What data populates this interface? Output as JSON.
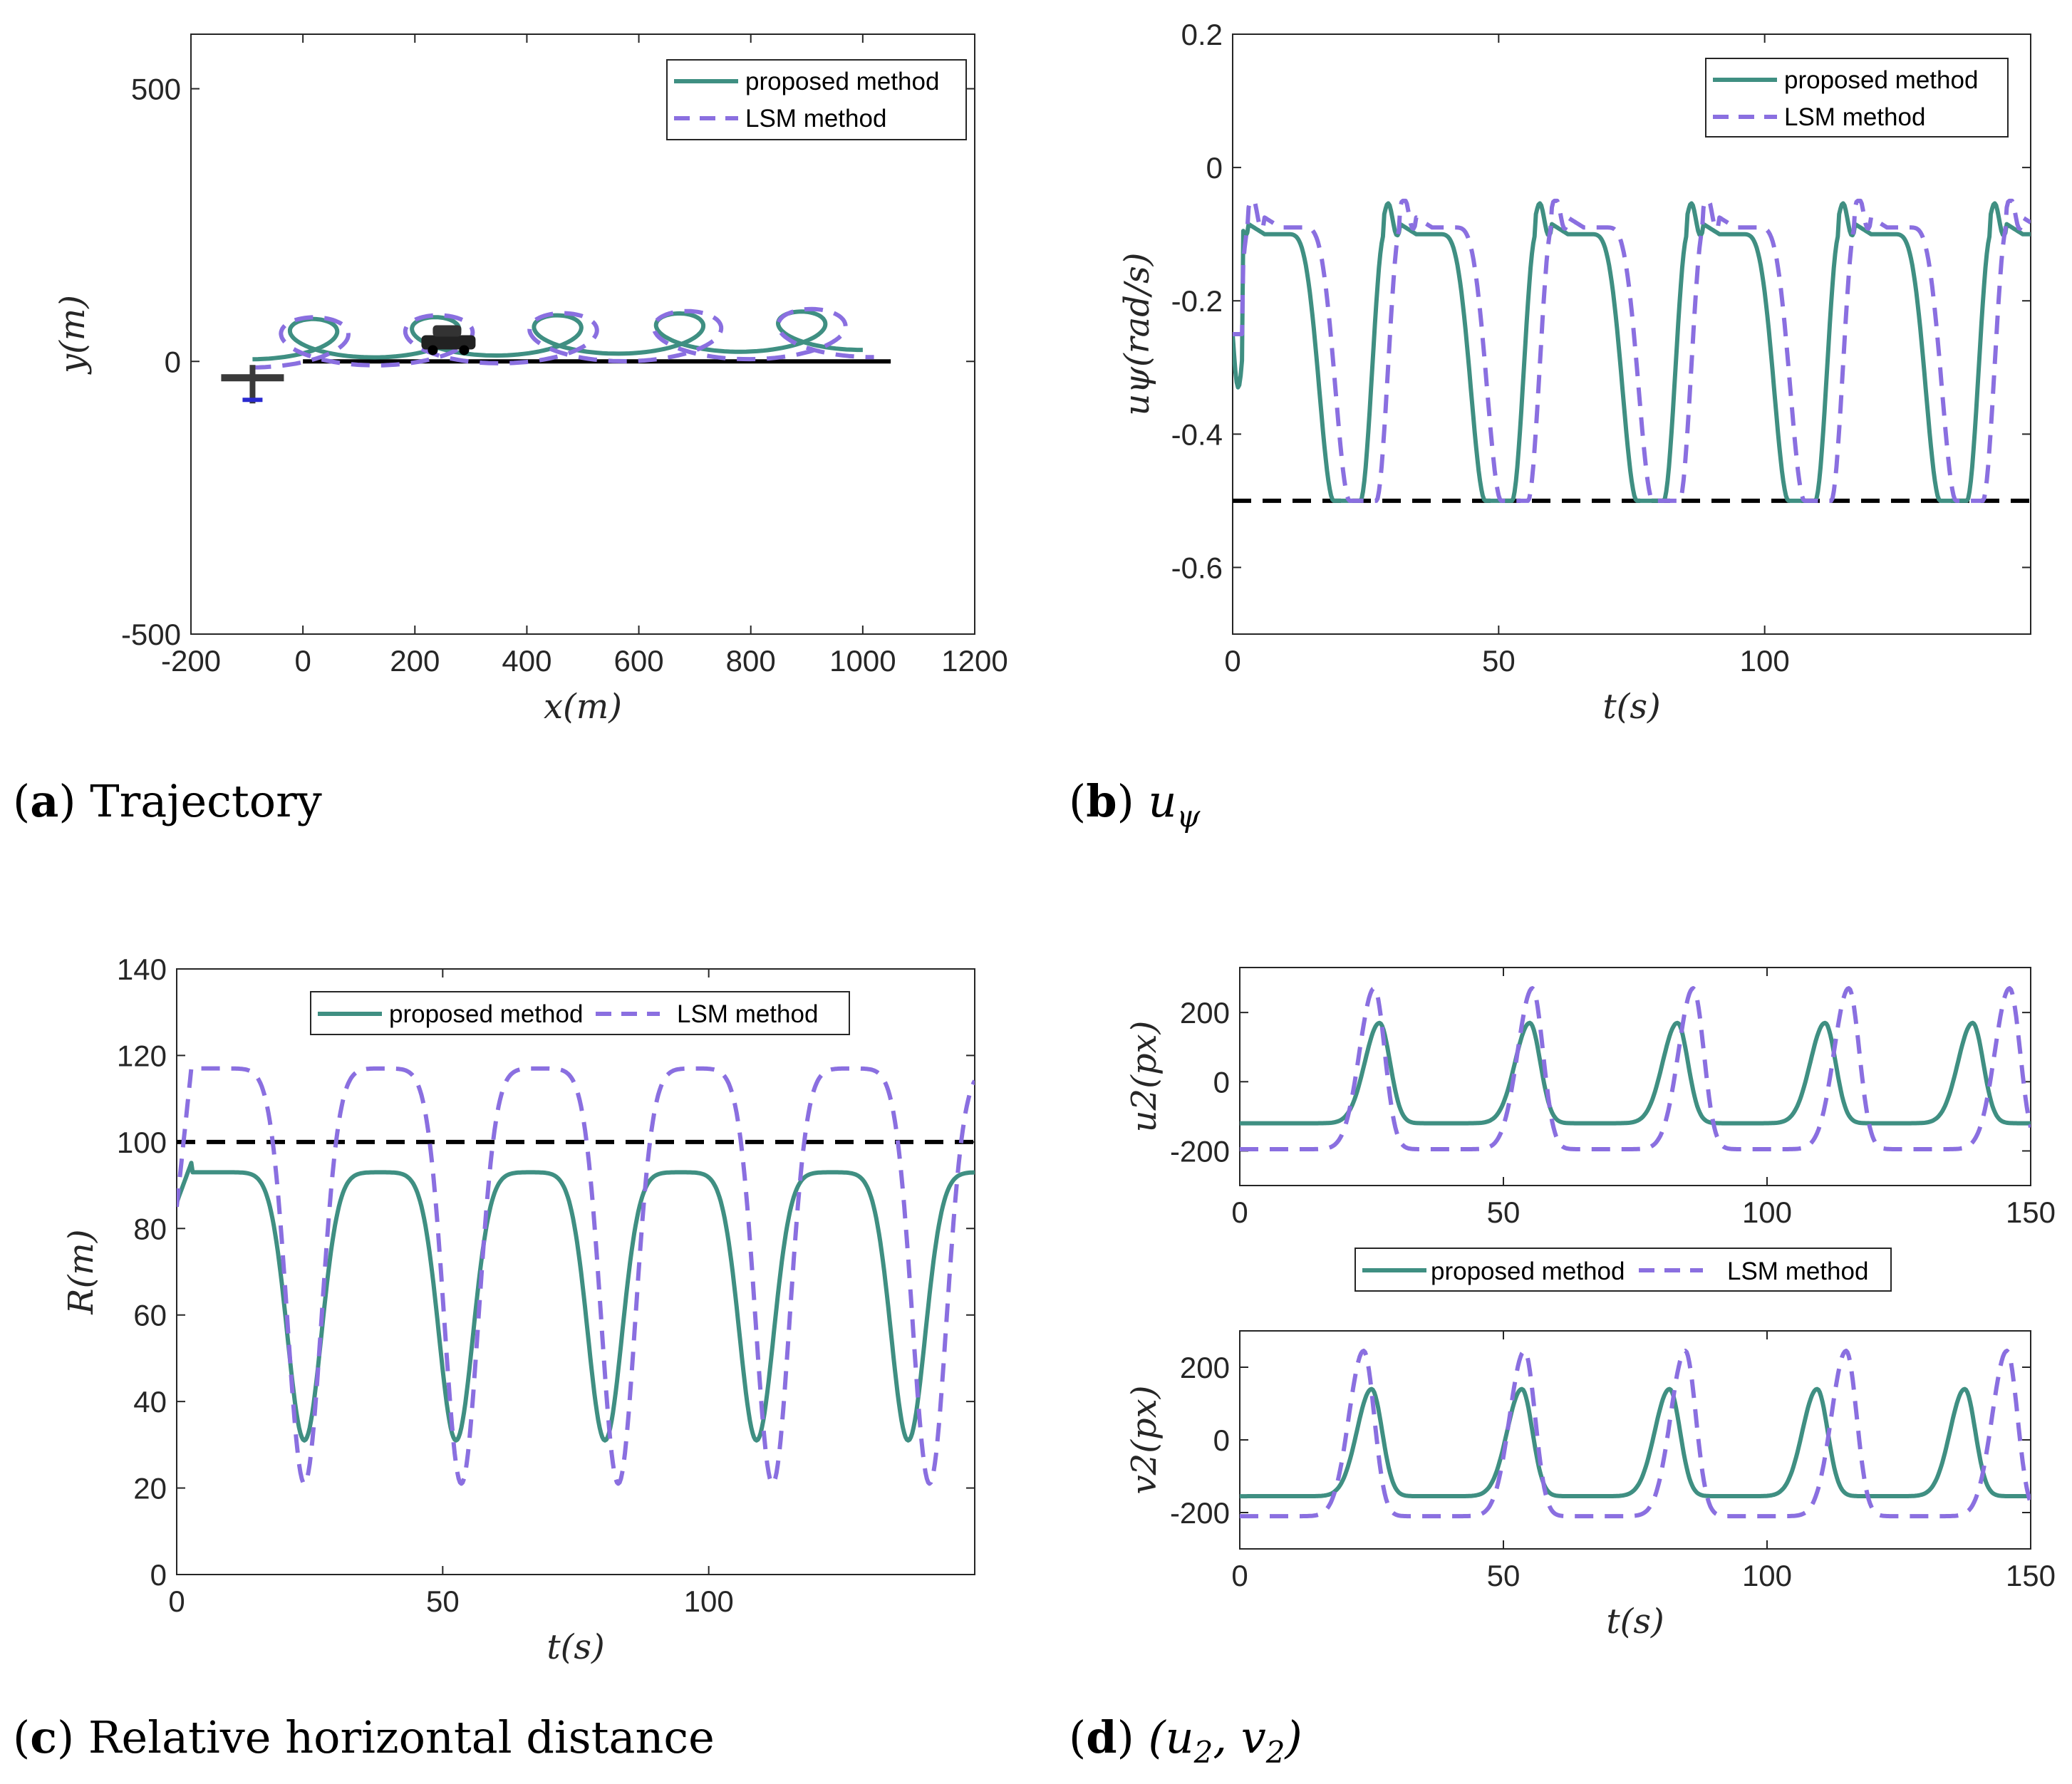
{
  "colors": {
    "proposed": "#3f8f82",
    "lsm": "#8a6fe0",
    "reference": "#000000",
    "axis": "#262626"
  },
  "legend": {
    "proposed": "proposed method",
    "lsm": "LSM method"
  },
  "captions": {
    "a": {
      "letter": "a",
      "text": "Trajectory"
    },
    "b": {
      "letter": "b",
      "text": "u",
      "sub": "ψ"
    },
    "c": {
      "letter": "c",
      "text": "Relative horizontal distance"
    },
    "d": {
      "letter": "d",
      "text": "(u",
      "sub1": "2",
      "mid": ", v",
      "sub2": "2",
      "end": ")"
    }
  },
  "chart_data": [
    {
      "id": "a",
      "type": "line",
      "xlabel": "x(m)",
      "ylabel": "y(m)",
      "xlim": [
        -200,
        1200
      ],
      "ylim": [
        -500,
        600
      ],
      "xticks": [
        -200,
        0,
        200,
        400,
        600,
        800,
        1000,
        1200
      ],
      "yticks": [
        -500,
        0,
        500
      ],
      "legend_position": "top-right",
      "icons": [
        "aircraft-icon",
        "car-icon"
      ],
      "series": [
        {
          "name": "proposed method",
          "style": "solid",
          "loops": {
            "x0": -90,
            "y0": -10,
            "x1": 1000,
            "y1": 85,
            "n": 5,
            "r": 90,
            "amp": 60
          }
        },
        {
          "name": "LSM method",
          "style": "dashed",
          "loops": {
            "x0": -90,
            "y0": -5,
            "x1": 1020,
            "y1": 100,
            "n": 5,
            "r": 110,
            "amp": 75
          }
        }
      ],
      "reference": {
        "x": [
          0,
          1050
        ],
        "y": [
          0,
          0
        ]
      }
    },
    {
      "id": "b",
      "type": "line",
      "xlabel": "t(s)",
      "ylabel": "uψ(rad/s)",
      "xlim": [
        0,
        150
      ],
      "ylim": [
        -0.7,
        0.2
      ],
      "xticks": [
        0,
        50,
        100
      ],
      "yticks": [
        0.2,
        0,
        -0.2,
        -0.4,
        -0.6
      ],
      "legend_position": "top-right",
      "series": [
        {
          "name": "proposed method",
          "style": "solid",
          "wave": {
            "t0": 0,
            "period": 28.5,
            "low": -0.5,
            "high": -0.1
          }
        },
        {
          "name": "LSM method",
          "style": "dashed",
          "wave": {
            "t0": 3,
            "period": 28.5,
            "low": -0.5,
            "high": -0.09
          }
        }
      ],
      "reference": {
        "y": -0.5
      }
    },
    {
      "id": "c",
      "type": "line",
      "xlabel": "t(s)",
      "ylabel": "R(m)",
      "xlim": [
        0,
        150
      ],
      "ylim": [
        0,
        140
      ],
      "xticks": [
        0,
        50,
        100
      ],
      "yticks": [
        0,
        20,
        40,
        60,
        80,
        100,
        120,
        140
      ],
      "legend_position": "top",
      "series": [
        {
          "name": "proposed method",
          "style": "solid",
          "minima": [
            24,
            52.5,
            80.5,
            109,
            137.5
          ],
          "min": 31,
          "max": 93,
          "start": 86
        },
        {
          "name": "LSM method",
          "style": "dashed",
          "minima": [
            24,
            53.5,
            83,
            112,
            141.5
          ],
          "min": 21,
          "max": 117,
          "start": 85
        }
      ],
      "reference": {
        "y": 100
      }
    },
    {
      "id": "d1",
      "type": "line",
      "xlabel": "",
      "ylabel": "u2(px)",
      "xlim": [
        0,
        150
      ],
      "ylim": [
        -300,
        330
      ],
      "xticks": [
        0,
        50,
        100,
        150
      ],
      "yticks": [
        200,
        0,
        -200
      ],
      "legend_position": "bottom",
      "series": [
        {
          "name": "proposed method",
          "style": "solid",
          "peaks": [
            26.5,
            55,
            83,
            111,
            139
          ],
          "peak": 170,
          "base": -120
        },
        {
          "name": "LSM method",
          "style": "dashed",
          "peaks": [
            25.5,
            55.5,
            86,
            115.5,
            146
          ],
          "peak": 270,
          "base": -195
        }
      ]
    },
    {
      "id": "d2",
      "type": "line",
      "xlabel": "t(s)",
      "ylabel": "v2(px)",
      "xlim": [
        0,
        150
      ],
      "ylim": [
        -300,
        300
      ],
      "xticks": [
        0,
        50,
        100,
        150
      ],
      "yticks": [
        200,
        0,
        -200
      ],
      "series": [
        {
          "name": "proposed method",
          "style": "solid",
          "peaks": [
            25,
            53.5,
            81.5,
            109.5,
            137.5
          ],
          "peak": 140,
          "base": -155
        },
        {
          "name": "LSM method",
          "style": "dashed",
          "peaks": [
            23.5,
            54,
            84.5,
            115,
            145.5
          ],
          "peak": 245,
          "base": -210
        }
      ]
    }
  ]
}
